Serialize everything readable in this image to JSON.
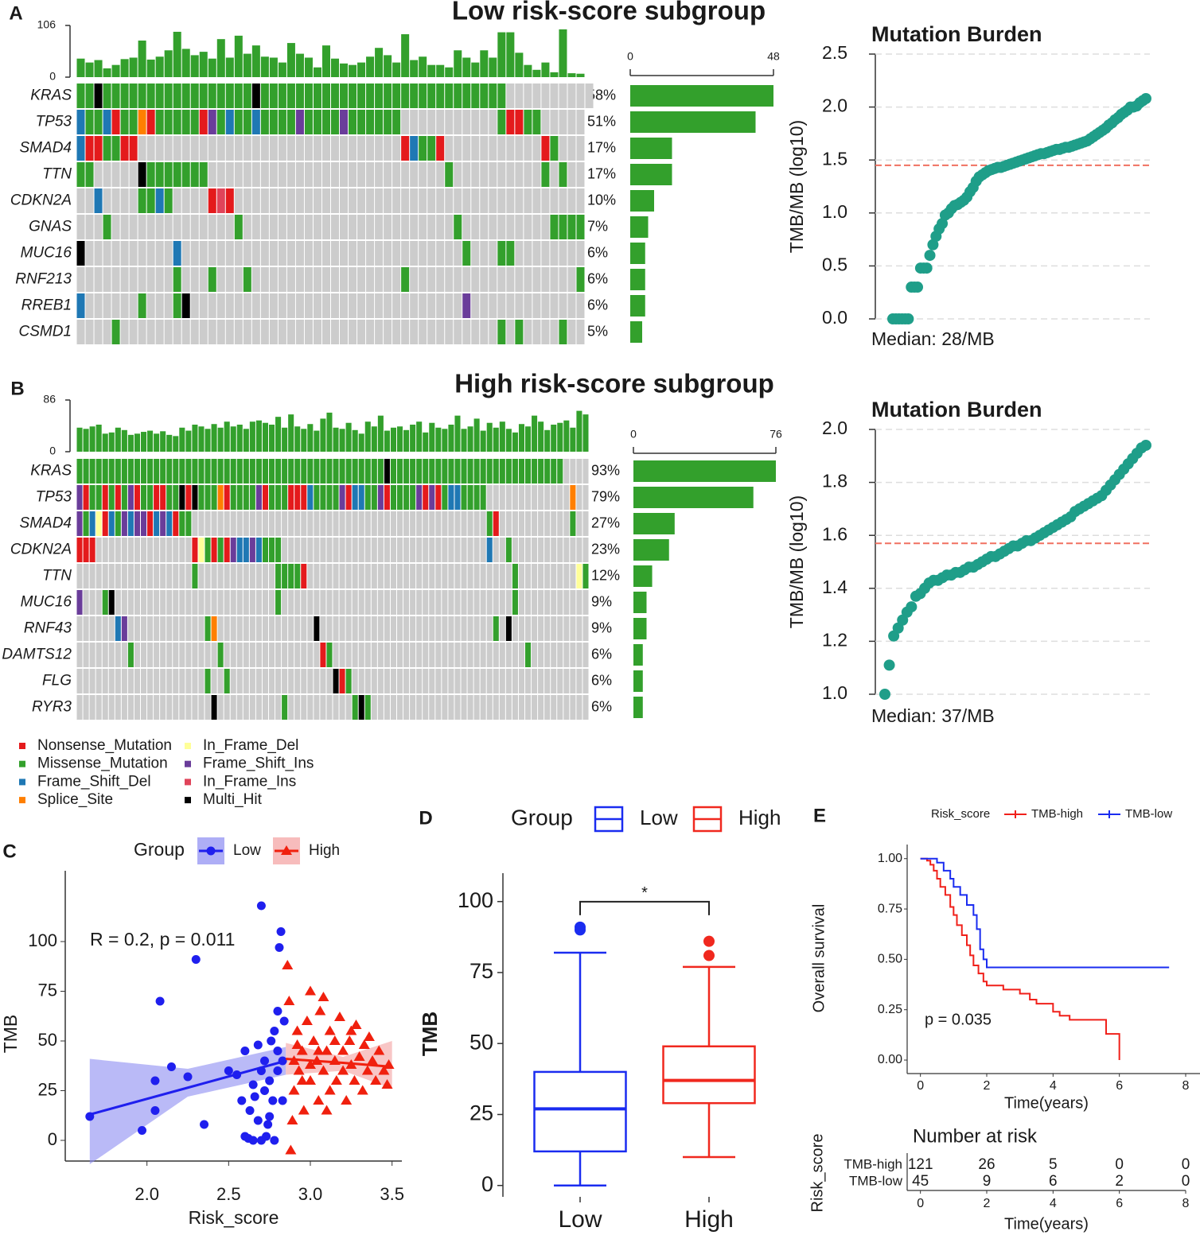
{
  "variant_classification": {
    "names": [
      "Nonsense_Mutation",
      "Missense_Mutation",
      "Frame_Shift_Del",
      "Splice_Site",
      "In_Frame_Del",
      "Frame_Shift_Ins",
      "In_Frame_Ins",
      "Multi_Hit"
    ],
    "colors": [
      "#e41a1c",
      "#33a02c",
      "#1f78b4",
      "#ff7f00",
      "#ffff99",
      "#6a3d9a",
      "#e0445a",
      "#000000"
    ]
  },
  "chart_data": [
    {
      "type": "oncoplot",
      "panel": "A",
      "title": "Low risk-score subgroup",
      "tmb": [
        38,
        30,
        35,
        18,
        25,
        37,
        40,
        75,
        36,
        42,
        55,
        93,
        58,
        45,
        52,
        38,
        78,
        40,
        85,
        48,
        65,
        42,
        40,
        30,
        70,
        48,
        40,
        20,
        65,
        38,
        28,
        25,
        30,
        42,
        60,
        45,
        30,
        88,
        35,
        42,
        25,
        25,
        20,
        55,
        40,
        30,
        55,
        40,
        92,
        92,
        50,
        25,
        15,
        30,
        10,
        98,
        8,
        7
      ],
      "ylim": [
        0,
        106
      ],
      "yticks": [
        0,
        106
      ],
      "genes": [
        "KRAS",
        "TP53",
        "SMAD4",
        "TTN",
        "CDKN2A",
        "GNAS",
        "MUC16",
        "RNF213",
        "RREB1",
        "CSMD1"
      ],
      "percent_labels": [
        "58%",
        "51%",
        "17%",
        "17%",
        "10%",
        "7%",
        "6%",
        "6%",
        "6%",
        "5%"
      ],
      "counts": [
        48,
        42,
        14,
        14,
        8,
        6,
        5,
        5,
        5,
        4
      ],
      "xlim": [
        0,
        48
      ],
      "xticks": [
        0,
        48
      ],
      "cells": [
        "1171111111111111111171111111111111111111111111111..........",
        "2112011301111105121121111511115111111...........10011.....",
        "2001100..............................02110...........01...",
        "11.....71111111...........................1..........1.1..",
        "..2....1121....060........................................",
        "...1..............1........................1..........1111",
        "7..........2................................1...11........",
        "...........1...1...1.................1...................1",
        "2......1...17...............................5.............",
        "....1...........................................1.1....1.."
      ]
    },
    {
      "type": "dot",
      "title": "Mutation Burden",
      "ylabel": "TMB/MB (log10)",
      "ylim": [
        0,
        2.5
      ],
      "yticks": [
        {
          "value": 0,
          "label": "0.0"
        },
        {
          "value": 0.5,
          "label": "0.5"
        },
        {
          "value": 1,
          "label": "1.0"
        },
        {
          "value": 1.5,
          "label": "1.5"
        },
        {
          "value": 2,
          "label": "2.0"
        },
        {
          "value": 2.5,
          "label": "2.5"
        }
      ],
      "grid": true,
      "color": "#1f9e89",
      "median_line": 1.45,
      "median_color": "#f07060",
      "median_label": "Median: 28/MB",
      "values": [
        0,
        0,
        0,
        0,
        0,
        0,
        0.3,
        0.3,
        0.3,
        0.48,
        0.48,
        0.48,
        0.6,
        0.7,
        0.78,
        0.85,
        0.9,
        0.98,
        1.0,
        1.04,
        1.07,
        1.08,
        1.1,
        1.12,
        1.15,
        1.2,
        1.24,
        1.3,
        1.34,
        1.36,
        1.38,
        1.4,
        1.41,
        1.42,
        1.43,
        1.43,
        1.44,
        1.45,
        1.46,
        1.47,
        1.48,
        1.49,
        1.5,
        1.51,
        1.52,
        1.53,
        1.54,
        1.55,
        1.56,
        1.56,
        1.57,
        1.58,
        1.59,
        1.6,
        1.6,
        1.61,
        1.62,
        1.62,
        1.63,
        1.64,
        1.65,
        1.66,
        1.67,
        1.68,
        1.7,
        1.72,
        1.74,
        1.76,
        1.78,
        1.8,
        1.83,
        1.85,
        1.88,
        1.9,
        1.93,
        1.95,
        1.97,
        2.0,
        2.0,
        2.01,
        2.04,
        2.06,
        2.08
      ]
    },
    {
      "type": "oncoplot",
      "panel": "B",
      "title": "High risk-score subgroup",
      "tmb": [
        40,
        38,
        42,
        45,
        30,
        32,
        40,
        36,
        28,
        30,
        33,
        35,
        30,
        34,
        28,
        26,
        40,
        35,
        45,
        42,
        38,
        46,
        40,
        50,
        42,
        45,
        38,
        50,
        52,
        48,
        45,
        58,
        40,
        62,
        42,
        38,
        46,
        35,
        55,
        65,
        40,
        38,
        48,
        36,
        30,
        50,
        42,
        60,
        35,
        40,
        42,
        36,
        45,
        50,
        32,
        48,
        40,
        38,
        45,
        60,
        38,
        42,
        55,
        35,
        48,
        40,
        50,
        38,
        32,
        46,
        42,
        60,
        50,
        36,
        45,
        48,
        52,
        40,
        68,
        62
      ],
      "ylim": [
        0,
        86
      ],
      "yticks": [
        0,
        86
      ],
      "genes": [
        "KRAS",
        "TP53",
        "SMAD4",
        "CDKN2A",
        "TTN",
        "MUC16",
        "RNF43",
        "DAMTS12",
        "FLG",
        "RYR3"
      ],
      "percent_labels": [
        "93%",
        "79%",
        "27%",
        "23%",
        "12%",
        "9%",
        "9%",
        "6%",
        "6%",
        "6%"
      ],
      "counts": [
        76,
        64,
        22,
        19,
        10,
        7,
        7,
        5,
        5,
        5
      ],
      "xlim": [
        0,
        76
      ],
      "xticks": [
        0,
        76
      ],
      "cells": [
        "1111111111111111111111111111111111111111111111117111111111111111111111111111....",
        "5011010150110011707111301111501110002111150221150111150501221111.............3..",
        "512402152550252011..............................................10...........1..",
        "000...............04101052252111................................2..1............",
        "..................1............11110................................1.........41",
        "5...17.........................1....................................1...........",
        "......25............13...............7...........................1.7............",
        "........1.............1...............01..............................1.........",
        "....................1..1................701.....................................",
        ".....................7..........1..........171.................................."
      ]
    },
    {
      "type": "dot",
      "title": "Mutation Burden",
      "ylabel": "TMB/MB (log10)",
      "ylim": [
        1.0,
        2.0
      ],
      "yticks": [
        {
          "value": 1.0,
          "label": "1.0"
        },
        {
          "value": 1.2,
          "label": "1.2"
        },
        {
          "value": 1.4,
          "label": "1.4"
        },
        {
          "value": 1.6,
          "label": "1.6"
        },
        {
          "value": 1.8,
          "label": "1.8"
        },
        {
          "value": 2.0,
          "label": "2.0"
        }
      ],
      "grid": true,
      "color": "#1f9e89",
      "median_line": 1.57,
      "median_color": "#f07060",
      "median_label": "Median: 37/MB",
      "values": [
        1.0,
        1.11,
        1.22,
        1.25,
        1.28,
        1.31,
        1.33,
        1.37,
        1.38,
        1.4,
        1.42,
        1.43,
        1.43,
        1.44,
        1.45,
        1.45,
        1.46,
        1.46,
        1.47,
        1.48,
        1.48,
        1.49,
        1.5,
        1.51,
        1.52,
        1.52,
        1.53,
        1.54,
        1.55,
        1.56,
        1.56,
        1.57,
        1.58,
        1.58,
        1.59,
        1.6,
        1.61,
        1.62,
        1.63,
        1.64,
        1.65,
        1.66,
        1.67,
        1.69,
        1.7,
        1.71,
        1.72,
        1.73,
        1.74,
        1.75,
        1.77,
        1.79,
        1.81,
        1.83,
        1.85,
        1.87,
        1.89,
        1.91,
        1.93,
        1.94
      ]
    },
    {
      "type": "scatter",
      "panel": "C",
      "legend_title": "Group",
      "annotation": "R = 0.2, p = 0.011",
      "xlabel": "Risk_score",
      "ylabel": "TMB",
      "xlim": [
        1.5,
        3.56
      ],
      "xticks": [
        {
          "value": 2,
          "label": "2.0"
        },
        {
          "value": 2.5,
          "label": "2.5"
        },
        {
          "value": 3,
          "label": "3.0"
        },
        {
          "value": 3.5,
          "label": "3.5"
        }
      ],
      "ylim": [
        -10.4,
        135.6
      ],
      "yticks": [
        0,
        25,
        50,
        75,
        100
      ],
      "series": [
        {
          "name": "Low",
          "color": "#1f1fee",
          "band_color": "#8c8cf2",
          "marker": "circle",
          "x": [
            1.65,
            1.97,
            2.05,
            2.05,
            2.08,
            2.15,
            2.25,
            2.3,
            2.35,
            2.5,
            2.55,
            2.58,
            2.6,
            2.62,
            2.63,
            2.65,
            2.65,
            2.68,
            2.7,
            2.7,
            2.72,
            2.72,
            2.73,
            2.75,
            2.75,
            2.76,
            2.77,
            2.78,
            2.78,
            2.8,
            2.8,
            2.8,
            2.81,
            2.82,
            2.83,
            2.83,
            2.84,
            2.6,
            2.68,
            2.7,
            2.74,
            2.66
          ],
          "y": [
            12,
            5,
            15,
            30,
            70,
            37,
            32,
            91,
            8,
            35,
            33,
            20,
            2,
            1,
            15,
            28,
            0,
            10,
            118,
            0,
            40,
            25,
            2,
            30,
            12,
            50,
            20,
            55,
            0,
            45,
            65,
            35,
            97,
            105,
            20,
            40,
            60,
            45,
            48,
            35,
            8,
            22
          ],
          "fit": {
            "x": [
              1.65,
              2.25,
              2.85
            ],
            "y": [
              13,
              26.5,
              40
            ],
            "lower": [
              -12,
              22,
              33
            ],
            "upper": [
              41,
              36,
              47
            ]
          }
        },
        {
          "name": "High",
          "color": "#f0200e",
          "band_color": "#f4a0a0",
          "marker": "triangle",
          "x": [
            2.86,
            2.87,
            2.88,
            2.9,
            2.9,
            2.92,
            2.93,
            2.95,
            2.96,
            2.98,
            3.0,
            3.0,
            3.02,
            3.04,
            3.05,
            3.06,
            3.08,
            3.08,
            3.1,
            3.12,
            3.12,
            3.15,
            3.16,
            3.18,
            3.2,
            3.2,
            3.22,
            3.24,
            3.25,
            3.27,
            3.28,
            3.3,
            3.32,
            3.33,
            3.35,
            3.36,
            3.38,
            3.4,
            3.42,
            3.45,
            3.47,
            3.48,
            2.95,
            3.05,
            3.15,
            2.89,
            3.1,
            3.25,
            3.0,
            2.92
          ],
          "y": [
            88,
            70,
            -5,
            40,
            25,
            55,
            35,
            45,
            15,
            60,
            30,
            75,
            50,
            40,
            20,
            65,
            35,
            72,
            45,
            25,
            55,
            40,
            30,
            62,
            45,
            35,
            20,
            50,
            38,
            30,
            58,
            42,
            25,
            48,
            35,
            52,
            40,
            30,
            45,
            35,
            28,
            38,
            30,
            45,
            50,
            10,
            15,
            55,
            38,
            48
          ],
          "fit": {
            "x": [
              2.85,
              3.2,
              3.5
            ],
            "y": [
              41,
              39,
              37
            ],
            "lower": [
              33,
              35,
              26
            ],
            "upper": [
              49,
              42,
              50
            ]
          }
        }
      ]
    },
    {
      "type": "box",
      "panel": "D",
      "legend_title": "Group",
      "ylabel": "TMB",
      "significance": "*",
      "ylim": [
        -4,
        110
      ],
      "yticks": [
        0,
        25,
        50,
        75,
        100
      ],
      "series": [
        {
          "name": "Low",
          "color": "#1a2cf0",
          "min": 0,
          "q1": 12,
          "median": 27,
          "q3": 40,
          "max": 82,
          "outliers": [
            90,
            91
          ]
        },
        {
          "name": "High",
          "color": "#f0281e",
          "min": 10,
          "q1": 29,
          "median": 37,
          "q3": 49,
          "max": 77,
          "outliers": [
            81,
            86
          ]
        }
      ]
    },
    {
      "type": "km",
      "panel": "E",
      "legend_title": "Risk_score",
      "ylabel": "Overall survival",
      "xlabel": "Time(years)",
      "annotation": "p = 0.035",
      "xlim": [
        -0.4,
        8.48
      ],
      "xticks": [
        0,
        2,
        4,
        6,
        8
      ],
      "ylim": [
        -0.067,
        1.07
      ],
      "yticks": [
        {
          "value": 0,
          "label": "0.00"
        },
        {
          "value": 0.25,
          "label": "0.25"
        },
        {
          "value": 0.5,
          "label": "0.50"
        },
        {
          "value": 0.75,
          "label": "0.75"
        },
        {
          "value": 1,
          "label": "1.00"
        }
      ],
      "series": [
        {
          "name": "TMB-high",
          "color": "#f0201a",
          "time": [
            0,
            0.2,
            0.3,
            0.4,
            0.5,
            0.6,
            0.75,
            0.9,
            1.0,
            1.1,
            1.25,
            1.4,
            1.5,
            1.6,
            1.75,
            1.9,
            2.0,
            2.5,
            3.0,
            3.3,
            3.5,
            4.0,
            4.2,
            4.5,
            5.5,
            5.6,
            6.0
          ],
          "surv": [
            1,
            0.99,
            0.97,
            0.94,
            0.9,
            0.86,
            0.82,
            0.76,
            0.72,
            0.67,
            0.62,
            0.57,
            0.52,
            0.47,
            0.43,
            0.39,
            0.37,
            0.35,
            0.33,
            0.3,
            0.28,
            0.24,
            0.22,
            0.2,
            0.2,
            0.13,
            0.0
          ],
          "at_risk": [
            121,
            26,
            5,
            0,
            0
          ]
        },
        {
          "name": "TMB-low",
          "color": "#1a2cf0",
          "time": [
            0,
            0.5,
            0.7,
            0.9,
            1.0,
            1.2,
            1.4,
            1.6,
            1.7,
            1.8,
            1.9,
            2.0,
            7.5
          ],
          "surv": [
            1,
            0.98,
            0.94,
            0.9,
            0.86,
            0.82,
            0.77,
            0.72,
            0.65,
            0.55,
            0.5,
            0.46,
            0.46
          ],
          "at_risk": [
            45,
            9,
            6,
            2,
            0
          ]
        }
      ],
      "risk_table_title": "Number at risk",
      "risk_table_ylabel": "Risk_score",
      "risk_table_xlabel": "Time(years)"
    }
  ]
}
